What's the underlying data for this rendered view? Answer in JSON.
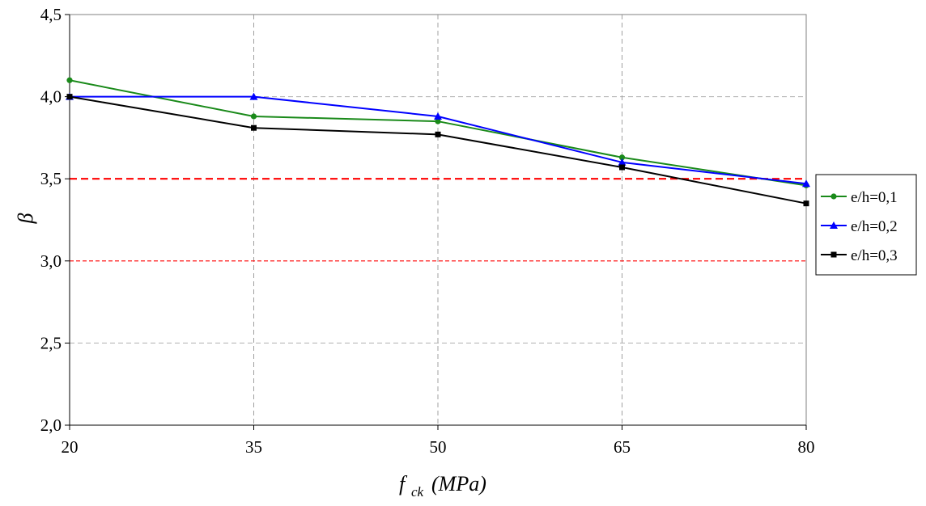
{
  "chart_data": {
    "type": "line",
    "title": "",
    "xlabel": "f",
    "xlabel_subscript": "ck",
    "xlabel_unit": "(MPa)",
    "ylabel": "β",
    "x": [
      20,
      35,
      50,
      65,
      80
    ],
    "x_tick_labels": [
      "20",
      "35",
      "50",
      "65",
      "80"
    ],
    "ylim": [
      2.0,
      4.5
    ],
    "y_ticks": [
      2.0,
      2.5,
      3.0,
      3.5,
      4.0,
      4.5
    ],
    "y_tick_labels": [
      "2,0",
      "2,5",
      "3,0",
      "3,5",
      "4,0",
      "4,5"
    ],
    "grid": "dashed",
    "legend_position": "right",
    "series": [
      {
        "name": "e/h=0,1",
        "color": "#1a8a1a",
        "marker": "circle",
        "values": [
          4.1,
          3.88,
          3.85,
          3.63,
          3.46
        ]
      },
      {
        "name": "e/h=0,2",
        "color": "#0000ff",
        "marker": "triangle",
        "values": [
          4.0,
          4.0,
          3.88,
          3.6,
          3.47
        ]
      },
      {
        "name": "e/h=0,3",
        "color": "#000000",
        "marker": "square",
        "values": [
          4.0,
          3.81,
          3.77,
          3.57,
          3.35
        ]
      }
    ],
    "reference_lines": [
      {
        "y": 3.5,
        "color": "#ff0000",
        "style": "dashed-bold"
      },
      {
        "y": 3.0,
        "color": "#ff0000",
        "style": "dashed-thin"
      }
    ]
  }
}
